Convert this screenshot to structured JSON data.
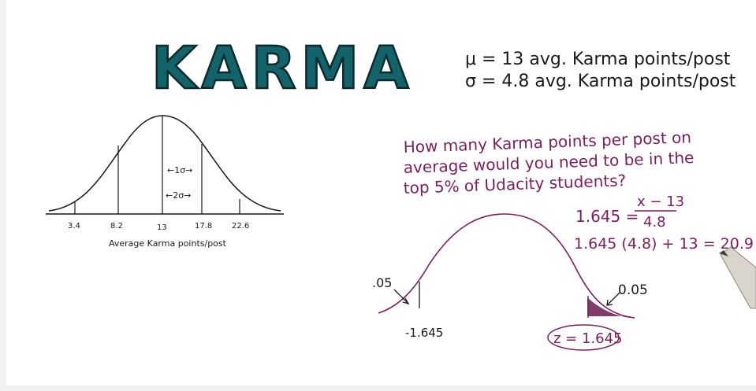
{
  "title": "KARMA",
  "colors": {
    "title_fill": "#13636a",
    "ink": "#1a1a1a",
    "question_ink": "#7a1f5c",
    "shade": "#6b1a52"
  },
  "params": {
    "mu_line": "μ = 13 avg. Karma points/post",
    "sigma_line": "σ = 4.8 avg. Karma points/post"
  },
  "left_curve": {
    "ticks": [
      "3.4",
      "8.2",
      "13",
      "17.8",
      "22.6"
    ],
    "sigma1_label": "←1σ→",
    "sigma2_label": "←2σ→",
    "axis_label": "Average Karma points/post"
  },
  "question": {
    "line1": "How many Karma points per post on",
    "line2": "average would you need to be in the",
    "line3": "top 5% of Udacity students?"
  },
  "work": {
    "eq1_lhs": "1.645 =",
    "eq1_num": "x − 13",
    "eq1_den": "4.8",
    "eq2": "1.645 (4.8) + 13 = 20.9"
  },
  "right_curve": {
    "left_tail_label": ".05",
    "right_tail_label": "0.05",
    "left_z": "-1.645",
    "right_z": "z = 1.645"
  }
}
